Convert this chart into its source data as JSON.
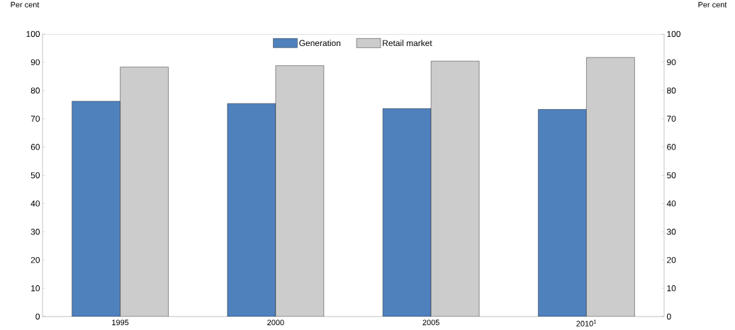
{
  "chart_data": {
    "type": "bar",
    "ylabel": "Per cent",
    "y2label": "Per cent",
    "categories": [
      "1995",
      "2000",
      "2005",
      "2010$^{1}$"
    ],
    "series": [
      {
        "name": "Generation",
        "color": "#4f81bd",
        "values": [
          76.2,
          75.4,
          73.6,
          73.3
        ]
      },
      {
        "name": "Retail market",
        "color": "#cccccc",
        "values": [
          88.3,
          88.8,
          90.4,
          91.7
        ]
      }
    ],
    "ylim": [
      0,
      100
    ],
    "yticks": [
      0,
      10,
      20,
      30,
      40,
      50,
      60,
      70,
      80,
      90,
      100
    ],
    "y2lim": [
      0,
      100
    ],
    "y2ticks": [
      0,
      10,
      20,
      30,
      40,
      50,
      60,
      70,
      80,
      90,
      100
    ],
    "legend": "top",
    "grid": false
  }
}
